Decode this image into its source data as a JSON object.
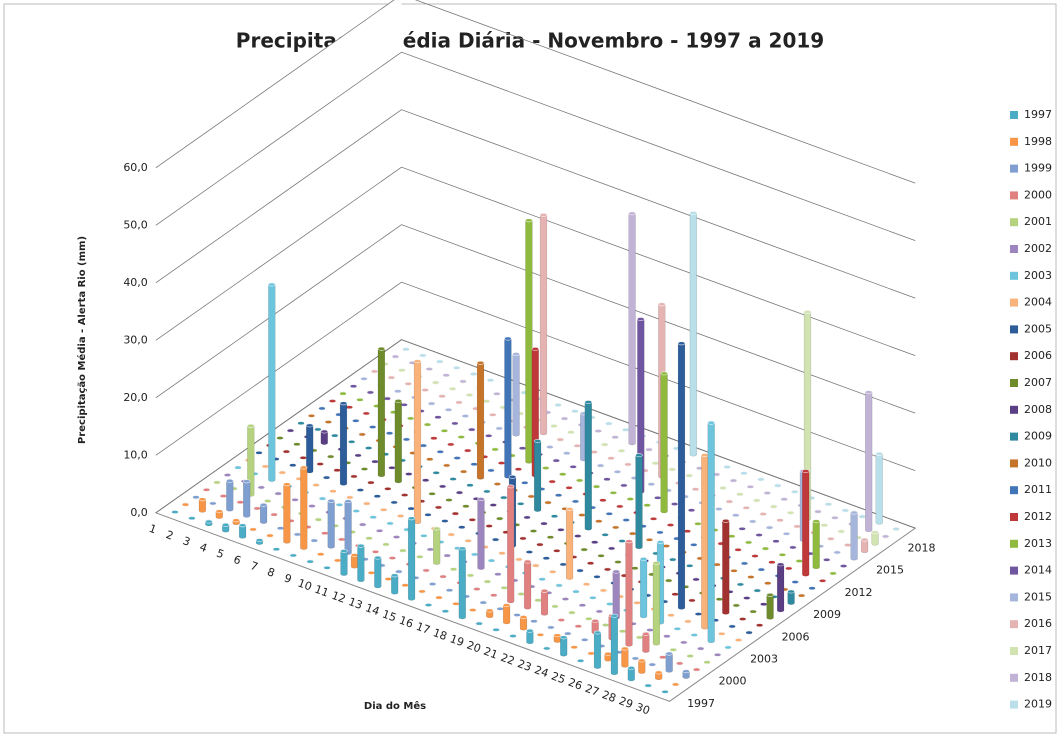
{
  "chart_data": {
    "type": "bar3d",
    "title": "Precipitação Média Diária - Novembro - 1997 a 2019",
    "x_label": "Dia do Mês",
    "y_label": "Precipitação Média - Alerta Rio (mm)",
    "categories": [
      "1",
      "2",
      "3",
      "4",
      "5",
      "6",
      "7",
      "8",
      "9",
      "10",
      "11",
      "12",
      "13",
      "14",
      "15",
      "16",
      "17",
      "18",
      "19",
      "20",
      "21",
      "22",
      "23",
      "24",
      "25",
      "26",
      "27",
      "28",
      "29",
      "30"
    ],
    "ylim": [
      0,
      60
    ],
    "yticks": [
      {
        "value": 0,
        "label": "0,0"
      },
      {
        "value": 10,
        "label": "10,0"
      },
      {
        "value": 20,
        "label": "20,0"
      },
      {
        "value": 30,
        "label": "30,0"
      },
      {
        "value": 40,
        "label": "40,0"
      },
      {
        "value": 50,
        "label": "50,0"
      },
      {
        "value": 60,
        "label": "60,0"
      }
    ],
    "grid": true,
    "legend": "right",
    "series": [
      {
        "name": "1997",
        "color": "#4bacc6",
        "values": [
          0,
          0,
          0.5,
          1,
          2,
          0.5,
          0,
          0,
          0,
          0,
          4,
          6,
          5,
          3,
          14,
          0,
          0,
          12,
          0,
          0,
          0,
          2,
          0,
          3,
          0,
          6,
          10,
          2,
          0,
          0
        ]
      },
      {
        "name": "1998",
        "color": "#f79646",
        "values": [
          0,
          2,
          1,
          0.5,
          0,
          0,
          10,
          14,
          0,
          0,
          2,
          0,
          0,
          0,
          0,
          0,
          0,
          0,
          1,
          3,
          2,
          0,
          1,
          0,
          0,
          1,
          3,
          2,
          1,
          0
        ]
      },
      {
        "name": "1999",
        "color": "#7f9fd0",
        "values": [
          0,
          0,
          5,
          6,
          3,
          0,
          0,
          0,
          8,
          9,
          0,
          0,
          0,
          0,
          0,
          0,
          0,
          0,
          0,
          0,
          0,
          0,
          0,
          0,
          0,
          0,
          0,
          0,
          3,
          1
        ]
      },
      {
        "name": "2000",
        "color": "#e08080",
        "values": [
          0,
          0,
          0,
          0,
          0,
          0,
          0,
          0,
          0,
          0,
          0,
          0,
          0,
          0,
          0,
          0,
          0,
          0,
          20,
          8,
          4,
          0,
          0,
          2,
          4,
          18,
          3,
          0,
          0,
          0
        ]
      },
      {
        "name": "2001",
        "color": "#b5d37f",
        "values": [
          0,
          0,
          12,
          0,
          0,
          0,
          0,
          0,
          0,
          0,
          0,
          0,
          0,
          6,
          0,
          0,
          0,
          0,
          0,
          0,
          0,
          0,
          0,
          0,
          0,
          0,
          14,
          0,
          0,
          0
        ]
      },
      {
        "name": "2002",
        "color": "#9d86bd",
        "values": [
          0,
          0,
          0,
          0,
          0,
          0,
          0,
          0,
          0,
          0,
          0,
          0,
          0,
          0,
          0,
          12,
          0,
          0,
          0,
          0,
          0,
          0,
          0,
          8,
          0,
          0,
          0,
          0,
          0,
          0
        ]
      },
      {
        "name": "2003",
        "color": "#6cc5dc",
        "values": [
          0,
          0,
          34,
          0,
          0,
          0,
          0,
          0,
          0,
          0,
          0,
          0,
          0,
          0,
          0,
          0,
          0,
          0,
          0,
          0,
          0,
          0,
          0,
          0,
          10,
          14,
          0,
          0,
          38,
          0
        ]
      },
      {
        "name": "2004",
        "color": "#f9b27a",
        "values": [
          0,
          0,
          0,
          0,
          0,
          0,
          0,
          0,
          0,
          0,
          28,
          0,
          0,
          0,
          0,
          0,
          0,
          0,
          0,
          12,
          0,
          0,
          0,
          0,
          0,
          0,
          0,
          30,
          0,
          0
        ]
      },
      {
        "name": "2005",
        "color": "#2c5d9a",
        "values": [
          0,
          0,
          0,
          8,
          0,
          14,
          0,
          0,
          0,
          0,
          0,
          0,
          0,
          0,
          0,
          12,
          0,
          0,
          0,
          0,
          0,
          0,
          0,
          0,
          0,
          46,
          0,
          0,
          0,
          0
        ]
      },
      {
        "name": "2006",
        "color": "#a2322f",
        "values": [
          0,
          0,
          0,
          0,
          0,
          0,
          0,
          0,
          0,
          0,
          0,
          0,
          0,
          0,
          0,
          0,
          0,
          0,
          0,
          0,
          0,
          0,
          0,
          0,
          0,
          0,
          14,
          16,
          0,
          0
        ]
      },
      {
        "name": "2007",
        "color": "#6f8c2d",
        "values": [
          0,
          0,
          0,
          0,
          0,
          0,
          22,
          14,
          0,
          0,
          0,
          0,
          0,
          0,
          0,
          0,
          0,
          0,
          0,
          0,
          0,
          0,
          0,
          0,
          0,
          0,
          0,
          0,
          0,
          4
        ]
      },
      {
        "name": "2008",
        "color": "#5b3f85",
        "values": [
          0,
          0,
          2,
          0,
          0,
          0,
          0,
          0,
          0,
          0,
          0,
          0,
          0,
          0,
          0,
          0,
          0,
          0,
          0,
          0,
          0,
          0,
          0,
          0,
          0,
          0,
          0,
          0,
          0,
          8
        ]
      },
      {
        "name": "2009",
        "color": "#2f8aa0",
        "values": [
          0,
          0,
          0,
          0,
          0,
          0,
          0,
          0,
          0,
          0,
          0,
          0,
          0,
          0,
          12,
          0,
          0,
          22,
          0,
          0,
          16,
          0,
          0,
          0,
          0,
          0,
          0,
          0,
          0,
          2
        ]
      },
      {
        "name": "2010",
        "color": "#c6742a",
        "values": [
          0,
          0,
          0,
          0,
          0,
          0,
          0,
          0,
          0,
          0,
          20,
          0,
          0,
          0,
          0,
          0,
          0,
          0,
          0,
          0,
          0,
          0,
          0,
          0,
          0,
          0,
          0,
          0,
          0,
          0
        ]
      },
      {
        "name": "2011",
        "color": "#4275b8",
        "values": [
          0,
          0,
          0,
          0,
          0,
          0,
          0,
          0,
          0,
          0,
          0,
          24,
          0,
          0,
          0,
          0,
          0,
          0,
          0,
          0,
          0,
          0,
          0,
          0,
          0,
          0,
          0,
          0,
          0,
          0
        ]
      },
      {
        "name": "2012",
        "color": "#c0393a",
        "values": [
          0,
          0,
          0,
          0,
          0,
          0,
          0,
          0,
          0,
          0,
          0,
          0,
          22,
          0,
          0,
          0,
          0,
          0,
          0,
          0,
          0,
          0,
          0,
          0,
          0,
          0,
          0,
          0,
          18,
          0
        ]
      },
      {
        "name": "2013",
        "color": "#8fba3e",
        "values": [
          0,
          0,
          0,
          0,
          0,
          0,
          0,
          0,
          0,
          0,
          0,
          42,
          0,
          0,
          0,
          0,
          0,
          0,
          0,
          24,
          0,
          0,
          0,
          0,
          0,
          0,
          0,
          0,
          8,
          0
        ]
      },
      {
        "name": "2014",
        "color": "#7055a0",
        "values": [
          0,
          0,
          0,
          0,
          0,
          0,
          0,
          0,
          0,
          0,
          0,
          0,
          0,
          0,
          0,
          0,
          0,
          30,
          0,
          0,
          0,
          0,
          0,
          0,
          0,
          0,
          0,
          0,
          0,
          0
        ]
      },
      {
        "name": "2015",
        "color": "#a6b5dc",
        "values": [
          0,
          0,
          0,
          0,
          0,
          0,
          0,
          0,
          0,
          14,
          0,
          0,
          0,
          8,
          0,
          0,
          0,
          0,
          0,
          0,
          0,
          0,
          0,
          0,
          0,
          0,
          12,
          0,
          0,
          8
        ]
      },
      {
        "name": "2016",
        "color": "#e6b3b3",
        "values": [
          0,
          0,
          0,
          0,
          0,
          0,
          0,
          0,
          0,
          0,
          38,
          0,
          0,
          0,
          0,
          0,
          0,
          30,
          0,
          0,
          0,
          0,
          0,
          0,
          0,
          0,
          0,
          0,
          0,
          2
        ]
      },
      {
        "name": "2017",
        "color": "#d1e3b1",
        "values": [
          0,
          0,
          0,
          0,
          0,
          0,
          0,
          0,
          0,
          0,
          0,
          0,
          0,
          0,
          0,
          0,
          0,
          0,
          0,
          0,
          0,
          0,
          0,
          0,
          0,
          36,
          0,
          0,
          0,
          2
        ]
      },
      {
        "name": "2018",
        "color": "#c0b3d5",
        "values": [
          0,
          0,
          0,
          0,
          0,
          0,
          0,
          0,
          0,
          0,
          0,
          0,
          0,
          0,
          40,
          0,
          0,
          0,
          0,
          0,
          0,
          0,
          0,
          0,
          0,
          0,
          0,
          0,
          24,
          0
        ]
      },
      {
        "name": "2019",
        "color": "#b8dfea",
        "values": [
          0,
          0,
          0,
          0,
          0,
          0,
          0,
          0,
          0,
          0,
          0,
          0,
          0,
          0,
          0,
          0,
          0,
          42,
          0,
          0,
          0,
          0,
          0,
          0,
          0,
          0,
          0,
          0,
          12,
          0
        ]
      }
    ]
  }
}
